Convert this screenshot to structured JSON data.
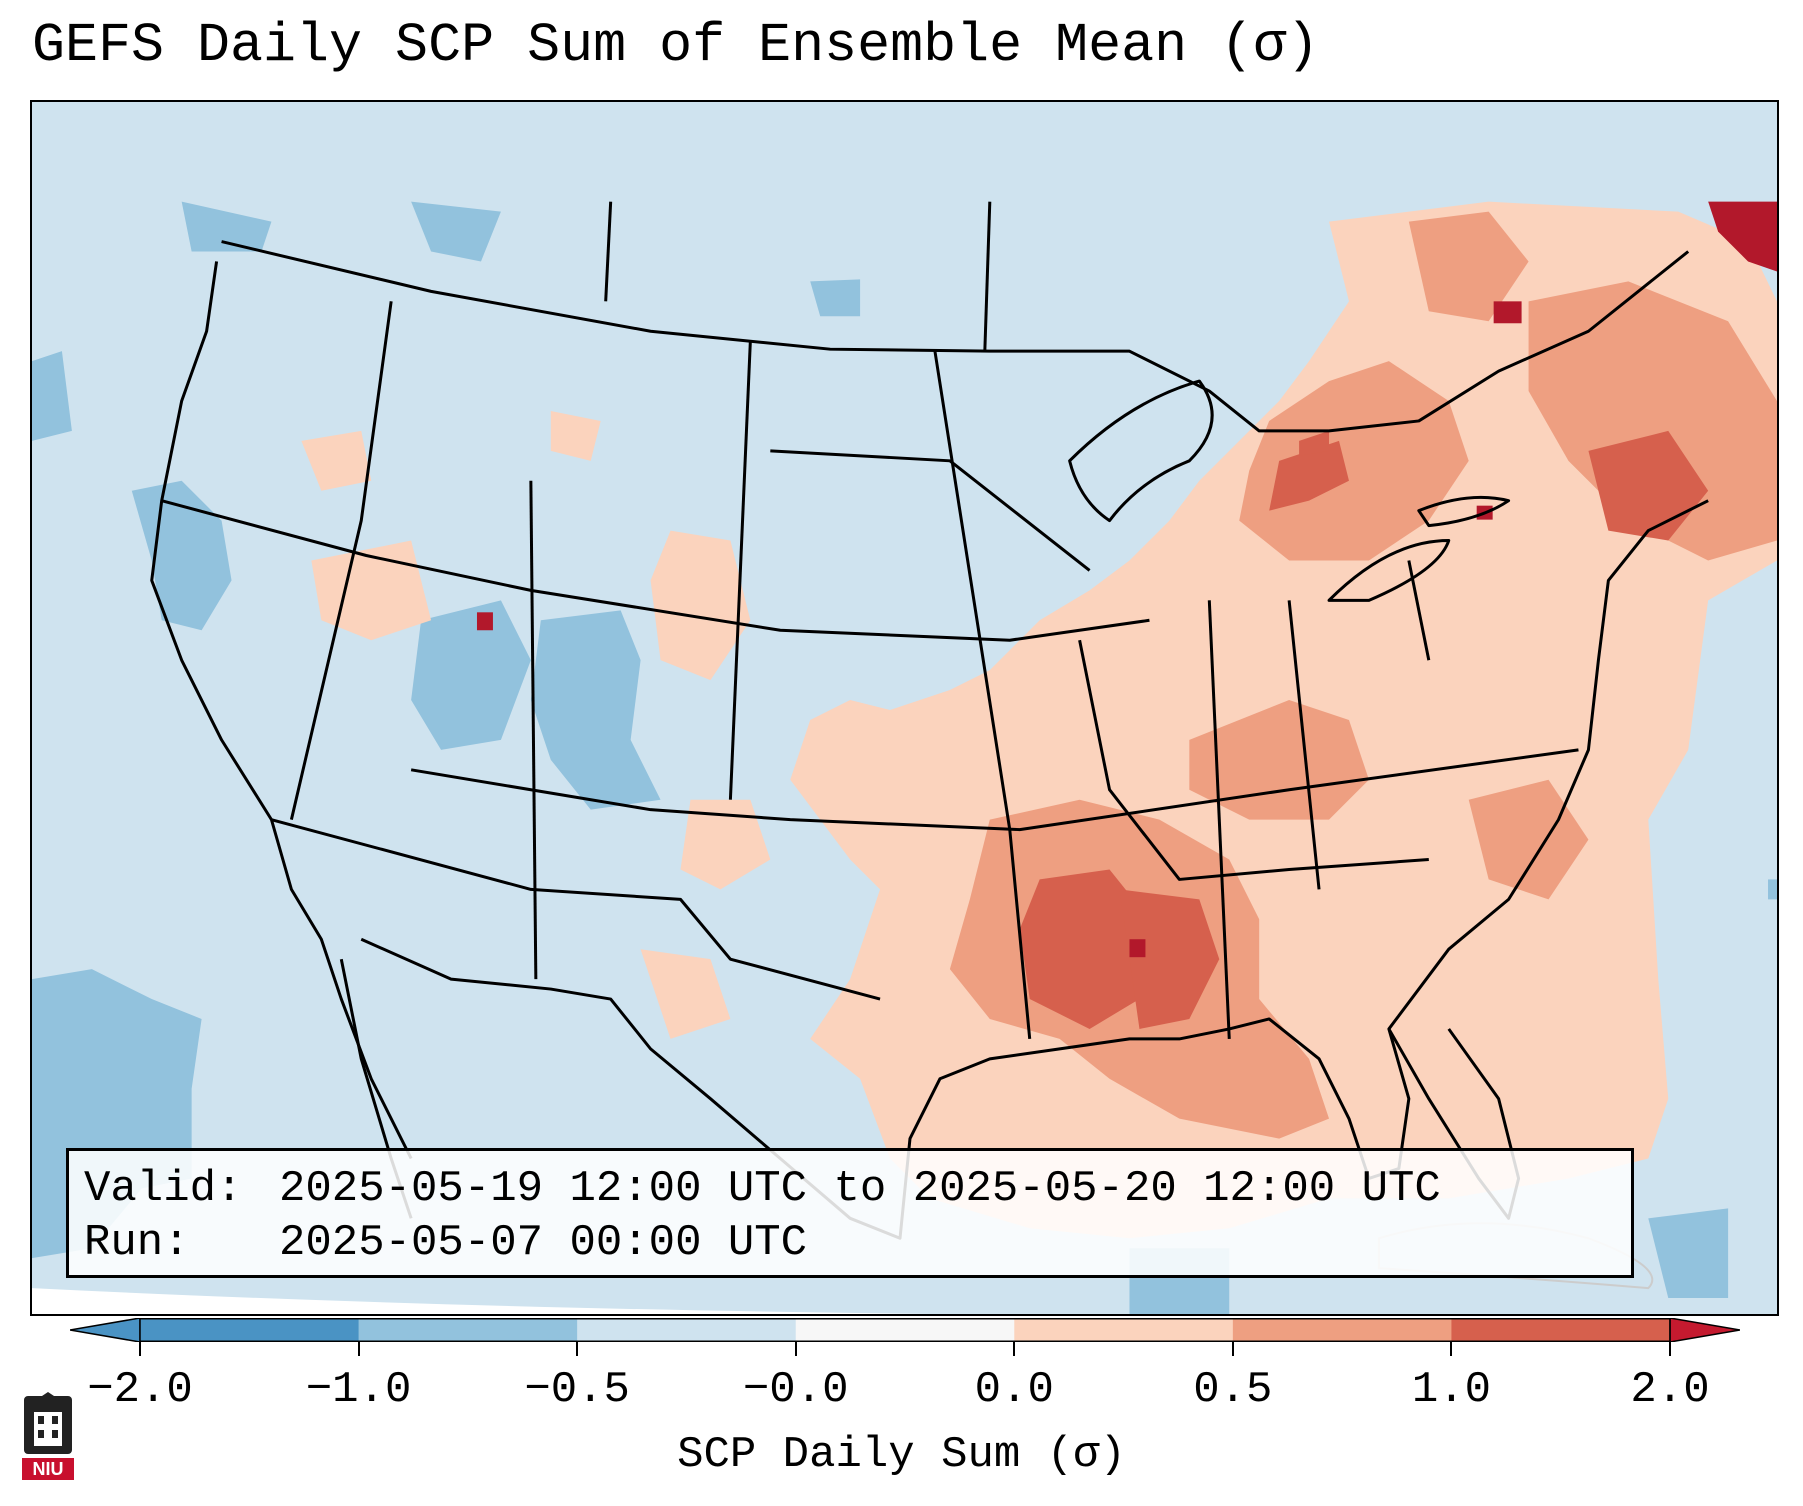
{
  "title": "GEFS Daily SCP Sum of Ensemble Mean (σ)",
  "info": {
    "valid_label": "Valid:",
    "valid_value": "2025-05-19 12:00 UTC to 2025-05-20 12:00 UTC",
    "run_label": "Run:",
    "run_value": "2025-05-07 00:00 UTC"
  },
  "colorbar": {
    "label": "SCP Daily Sum (σ)",
    "ticks": [
      "−2.0",
      "−1.0",
      "−0.5",
      "−0.0",
      "0.0",
      "0.5",
      "1.0",
      "2.0"
    ],
    "colors": [
      "#4a93c4",
      "#92c2dd",
      "#cfe3ef",
      "#f7f7f7",
      "#fbd3bd",
      "#ee9f81",
      "#d6604d",
      "#c41a2f"
    ]
  },
  "legend_colors": {
    "land_default": "#cfe3ef",
    "weak_negative": "#92c2dd",
    "positive_low": "#fbd3bd",
    "positive_mid": "#ee9f81",
    "positive_high": "#d6604d",
    "positive_max": "#b2182b"
  },
  "logo_text": "NIU"
}
